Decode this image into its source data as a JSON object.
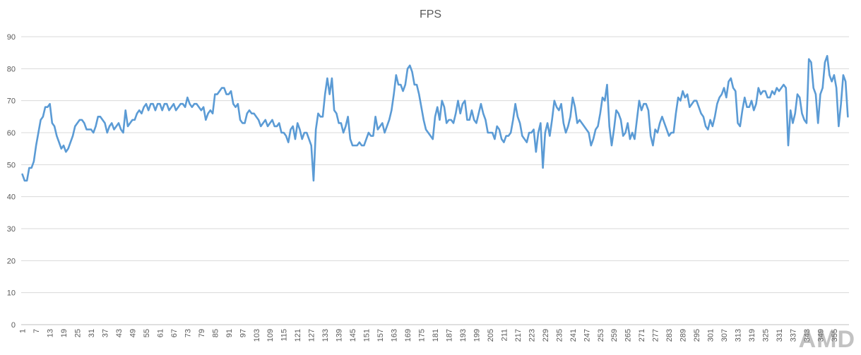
{
  "chart_data": {
    "type": "line",
    "title": "FPS",
    "xlabel": "",
    "ylabel": "",
    "ylim": [
      0,
      90
    ],
    "yticks": [
      0,
      10,
      20,
      30,
      40,
      50,
      60,
      70,
      80,
      90
    ],
    "grid": true,
    "line_color": "#5b9bd5",
    "grid_color": "#d9d9d9",
    "x_start": 1,
    "x_tick_step": 6,
    "x_tick_labels": [
      "1",
      "7",
      "13",
      "19",
      "25",
      "31",
      "37",
      "43",
      "49",
      "55",
      "61",
      "67",
      "73",
      "79",
      "85",
      "91",
      "97",
      "103",
      "109",
      "115",
      "121",
      "127",
      "133",
      "139",
      "145",
      "151",
      "157",
      "163",
      "169",
      "175",
      "181",
      "187",
      "193",
      "199",
      "205",
      "211",
      "217",
      "223",
      "229",
      "235",
      "241",
      "247",
      "253",
      "259",
      "265",
      "271",
      "277",
      "283",
      "289",
      "295",
      "301",
      "307",
      "313",
      "319",
      "325",
      "331",
      "337",
      "343",
      "349",
      "355"
    ],
    "series": [
      {
        "values": [
          47,
          45,
          45,
          49,
          49,
          51,
          56,
          60,
          64,
          65,
          68,
          68,
          69,
          63,
          62,
          59,
          57,
          55,
          56,
          54,
          55,
          57,
          59,
          62,
          63,
          64,
          64,
          63,
          61,
          61,
          61,
          60,
          62,
          65,
          65,
          64,
          63,
          60,
          62,
          63,
          61,
          62,
          63,
          61,
          60,
          67,
          62,
          63,
          64,
          64,
          66,
          67,
          66,
          68,
          69,
          67,
          69,
          69,
          67,
          69,
          69,
          67,
          69,
          69,
          67,
          68,
          69,
          67,
          68,
          69,
          69,
          68,
          71,
          69,
          68,
          69,
          69,
          68,
          67,
          68,
          64,
          66,
          67,
          66,
          72,
          72,
          73,
          74,
          74,
          72,
          72,
          73,
          69,
          68,
          69,
          64,
          63,
          63,
          66,
          67,
          66,
          66,
          65,
          64,
          62,
          63,
          64,
          62,
          63,
          64,
          62,
          62,
          63,
          60,
          60,
          59,
          57,
          61,
          62,
          58,
          63,
          61,
          58,
          60,
          60,
          58,
          56,
          45,
          61,
          66,
          65,
          65,
          72,
          77,
          72,
          77,
          67,
          66,
          63,
          63,
          60,
          62,
          65,
          58,
          56,
          56,
          56,
          57,
          56,
          56,
          58,
          60,
          59,
          59,
          65,
          61,
          62,
          63,
          60,
          62,
          64,
          67,
          72,
          78,
          75,
          75,
          73,
          75,
          80,
          81,
          79,
          75,
          75,
          72,
          68,
          64,
          61,
          60,
          59,
          58,
          65,
          68,
          64,
          70,
          68,
          63,
          64,
          64,
          63,
          66,
          70,
          66,
          69,
          70,
          64,
          64,
          67,
          64,
          63,
          66,
          69,
          66,
          64,
          60,
          60,
          60,
          58,
          62,
          61,
          58,
          57,
          59,
          59,
          60,
          64,
          69,
          65,
          63,
          59,
          58,
          57,
          60,
          60,
          61,
          54,
          60,
          63,
          49,
          60,
          63,
          59,
          64,
          70,
          68,
          67,
          69,
          63,
          60,
          62,
          65,
          71,
          68,
          63,
          64,
          63,
          62,
          61,
          60,
          56,
          58,
          61,
          62,
          66,
          71,
          70,
          75,
          62,
          56,
          61,
          67,
          66,
          64,
          59,
          60,
          63,
          58,
          60,
          58,
          64,
          70,
          67,
          69,
          69,
          67,
          59,
          56,
          61,
          60,
          63,
          65,
          63,
          61,
          59,
          60,
          60,
          66,
          71,
          70,
          73,
          71,
          72,
          68,
          69,
          70,
          70,
          68,
          66,
          65,
          62,
          61,
          64,
          62,
          65,
          69,
          71,
          72,
          74,
          71,
          76,
          77,
          74,
          73,
          63,
          62,
          67,
          71,
          68,
          68,
          70,
          67,
          69,
          74,
          72,
          73,
          73,
          71,
          71,
          73,
          72,
          74,
          73,
          74,
          75,
          74,
          56,
          67,
          63,
          66,
          72,
          71,
          66,
          64,
          63,
          83,
          82,
          74,
          72,
          63,
          72,
          74,
          82,
          84,
          78,
          76,
          78,
          74,
          62,
          69,
          78,
          76,
          65
        ]
      }
    ],
    "watermark": "AMD"
  }
}
